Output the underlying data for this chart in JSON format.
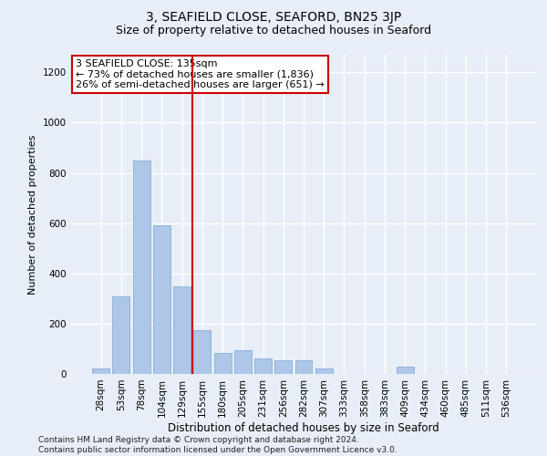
{
  "title": "3, SEAFIELD CLOSE, SEAFORD, BN25 3JP",
  "subtitle": "Size of property relative to detached houses in Seaford",
  "xlabel": "Distribution of detached houses by size in Seaford",
  "ylabel": "Number of detached properties",
  "bar_labels": [
    "28sqm",
    "53sqm",
    "78sqm",
    "104sqm",
    "129sqm",
    "155sqm",
    "180sqm",
    "205sqm",
    "231sqm",
    "256sqm",
    "282sqm",
    "307sqm",
    "333sqm",
    "358sqm",
    "383sqm",
    "409sqm",
    "434sqm",
    "460sqm",
    "485sqm",
    "511sqm",
    "536sqm"
  ],
  "bar_values": [
    20,
    310,
    850,
    590,
    350,
    175,
    85,
    95,
    60,
    55,
    55,
    20,
    0,
    0,
    0,
    30,
    0,
    0,
    0,
    0,
    0
  ],
  "bar_color": "#aec6e8",
  "bar_edge_color": "#7aa8d0",
  "background_color": "#e8eef7",
  "grid_color": "#ffffff",
  "red_line_color": "#cc0000",
  "annotation_text": "3 SEAFIELD CLOSE: 135sqm\n← 73% of detached houses are smaller (1,836)\n26% of semi-detached houses are larger (651) →",
  "annotation_box_color": "#ffffff",
  "annotation_box_edge": "#cc0000",
  "ylim": [
    0,
    1270
  ],
  "yticks": [
    0,
    200,
    400,
    600,
    800,
    1000,
    1200
  ],
  "footnote": "Contains HM Land Registry data © Crown copyright and database right 2024.\nContains public sector information licensed under the Open Government Licence v3.0.",
  "title_fontsize": 10,
  "subtitle_fontsize": 9,
  "xlabel_fontsize": 8.5,
  "ylabel_fontsize": 8,
  "tick_fontsize": 7.5,
  "annotation_fontsize": 8,
  "footnote_fontsize": 6.5
}
